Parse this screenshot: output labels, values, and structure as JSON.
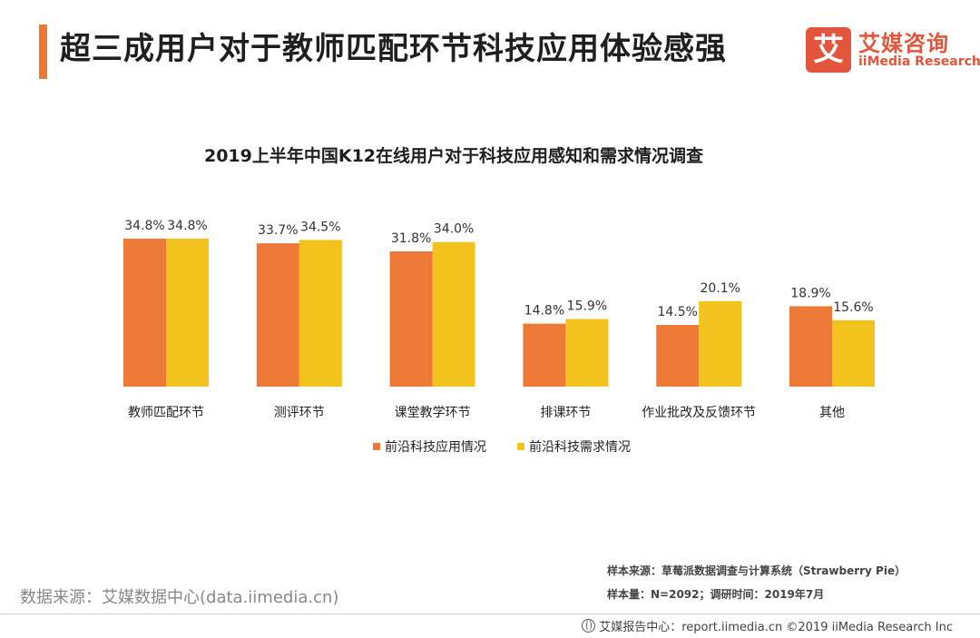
{
  "header": {
    "title": "超三成用户对于教师匹配环节科技应用体验感强"
  },
  "logo": {
    "mark": "艾",
    "name_cn": "艾媒咨询",
    "name_en": "iiMedia Research"
  },
  "colors": {
    "accent": "#ec7a36",
    "series1": "#ec7a36",
    "series2": "#f2c31d"
  },
  "chart_data": {
    "type": "bar",
    "title": "2019上半年中国K12在线用户对于科技应用感知和需求情况调查",
    "categories": [
      "教师匹配环节",
      "测评环节",
      "课堂教学环节",
      "排课环节",
      "作业批改及反馈环节",
      "其他"
    ],
    "series": [
      {
        "name": "前沿科技应用情况",
        "values": [
          34.8,
          33.7,
          31.8,
          14.8,
          14.5,
          18.9
        ],
        "labels": [
          "34.8%",
          "33.7%",
          "31.8%",
          "14.8%",
          "14.5%",
          "18.9%"
        ]
      },
      {
        "name": "前沿科技需求情况",
        "values": [
          34.8,
          34.5,
          34.0,
          15.9,
          20.1,
          15.6
        ],
        "labels": [
          "34.8%",
          "34.5%",
          "34.0%",
          "15.9%",
          "20.1%",
          "15.6%"
        ]
      }
    ],
    "ylim": [
      0,
      35
    ],
    "unit": "%",
    "legend_position": "bottom",
    "grid": false
  },
  "notes": {
    "sample_source": "样本来源：草莓派数据调查与计算系统（Strawberry  Pie）",
    "sample_size": "样本量：N=2092；调研时间：2019年7月"
  },
  "data_source": "数据来源：艾媒数据中心(data.iimedia.cn)",
  "footer": {
    "text": "艾媒报告中心：report.iimedia.cn  ©2019  iiMedia Research  Inc"
  }
}
